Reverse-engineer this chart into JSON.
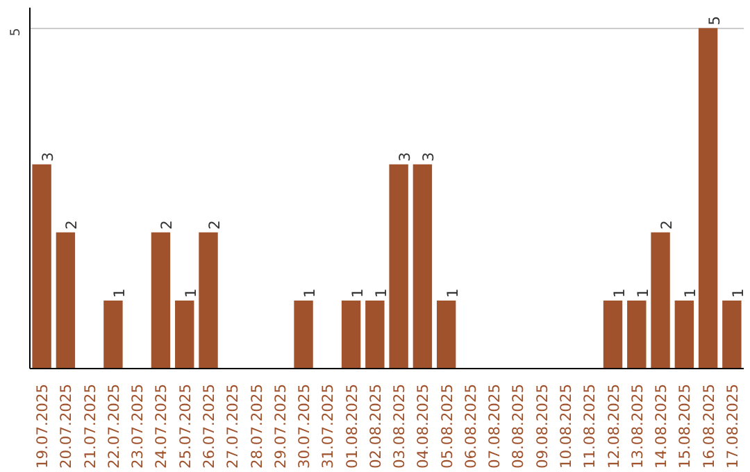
{
  "chart_data": {
    "type": "bar",
    "categories": [
      "19.07.2025",
      "20.07.2025",
      "21.07.2025",
      "22.07.2025",
      "23.07.2025",
      "24.07.2025",
      "25.07.2025",
      "26.07.2025",
      "27.07.2025",
      "28.07.2025",
      "29.07.2025",
      "30.07.2025",
      "31.07.2025",
      "01.08.2025",
      "02.08.2025",
      "03.08.2025",
      "04.08.2025",
      "05.08.2025",
      "06.08.2025",
      "07.08.2025",
      "08.08.2025",
      "09.08.2025",
      "10.08.2025",
      "11.08.2025",
      "12.08.2025",
      "13.08.2025",
      "14.08.2025",
      "15.08.2025",
      "16.08.2025",
      "17.08.2025"
    ],
    "values": [
      3,
      2,
      0,
      1,
      0,
      2,
      1,
      2,
      0,
      0,
      0,
      1,
      0,
      1,
      1,
      3,
      3,
      1,
      0,
      0,
      0,
      0,
      0,
      0,
      1,
      1,
      2,
      1,
      5,
      1
    ],
    "value_labels": [
      "3",
      "2",
      null,
      "1",
      null,
      "2",
      "1",
      "2",
      null,
      null,
      null,
      "1",
      null,
      "1",
      "1",
      "3",
      "3",
      "1",
      null,
      null,
      null,
      null,
      null,
      null,
      "1",
      "1",
      "2",
      "1",
      "5",
      "1"
    ],
    "color": "#a0522d",
    "ylim": [
      0,
      5.3
    ],
    "yticks": [
      5
    ],
    "grid": "y"
  }
}
